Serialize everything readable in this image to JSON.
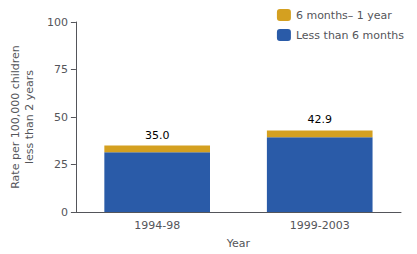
{
  "chart_data": {
    "type": "bar",
    "stacked": true,
    "categories": [
      "1994-98",
      "1999-2003"
    ],
    "series": [
      {
        "name": "Less than 6 months",
        "color": "#2a5ba8",
        "values": [
          31.5,
          39.4
        ]
      },
      {
        "name": "6 months– 1 year",
        "color": "#d4a020",
        "values": [
          3.5,
          3.5
        ]
      }
    ],
    "annotations": [
      {
        "category": "1994-98",
        "value": 35.0,
        "label": "35.0"
      },
      {
        "category": "1999-2003",
        "value": 42.9,
        "label": "42.9"
      }
    ],
    "xlabel": "Year",
    "ylabel": "Rate per 100,000 children\nless than 2 years",
    "ylim": [
      0,
      100
    ],
    "yticks": [
      0,
      25,
      50,
      75,
      100
    ],
    "grid": false,
    "legend": "upper right"
  }
}
